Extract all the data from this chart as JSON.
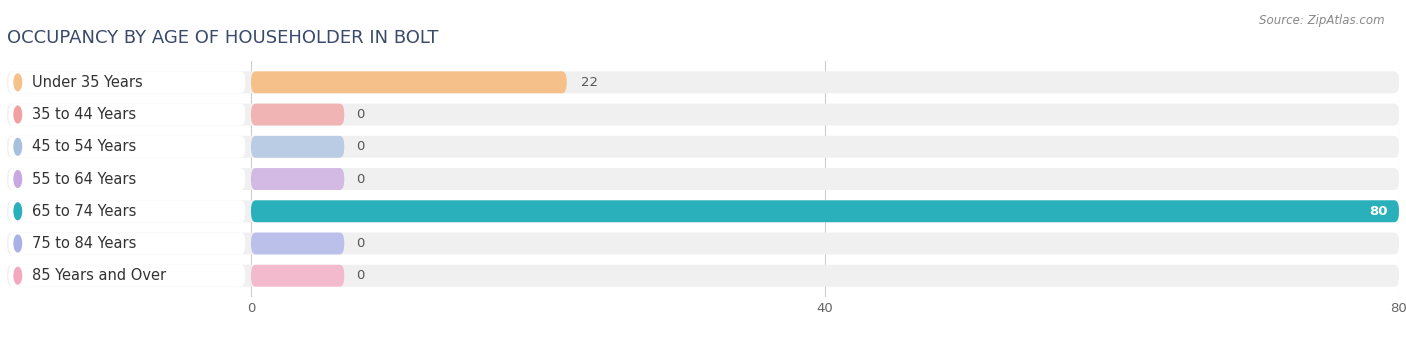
{
  "title": "OCCUPANCY BY AGE OF HOUSEHOLDER IN BOLT",
  "source": "Source: ZipAtlas.com",
  "categories": [
    "Under 35 Years",
    "35 to 44 Years",
    "45 to 54 Years",
    "55 to 64 Years",
    "65 to 74 Years",
    "75 to 84 Years",
    "85 Years and Over"
  ],
  "values": [
    22,
    0,
    0,
    0,
    80,
    0,
    0
  ],
  "bar_colors": [
    "#f5c08a",
    "#f0a0a0",
    "#a8c0e0",
    "#c8a8e0",
    "#2ab0ba",
    "#a8b0e8",
    "#f4a8c0"
  ],
  "label_bg_color": "#ffffff",
  "row_bg_color": "#f0f0f0",
  "chart_bg_color": "#ffffff",
  "page_bg_color": "#ffffff",
  "xlim": [
    0,
    80
  ],
  "xticks": [
    0,
    40,
    80
  ],
  "title_fontsize": 13,
  "label_fontsize": 10.5,
  "value_fontsize": 9.5,
  "title_color": "#3a4a6a",
  "label_color": "#333333",
  "value_color": "#555555",
  "source_color": "#888888",
  "grid_color": "#cccccc"
}
